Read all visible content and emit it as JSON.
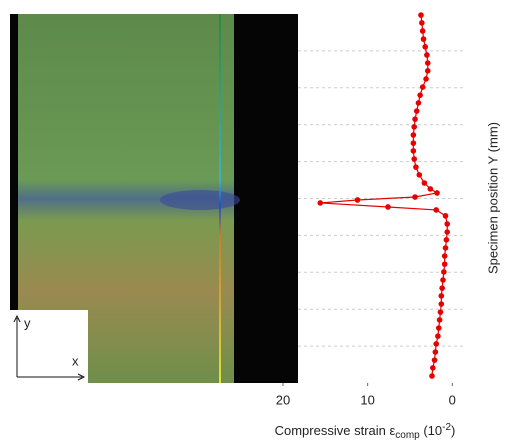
{
  "chart_data": {
    "type": "line",
    "x_label": {
      "main": "Compressive strain ε",
      "sub": "comp",
      "unit_open": " (10",
      "sup": "-2",
      "unit_close": ")"
    },
    "y_label": "Specimen position Y (mm)",
    "inset_axes": {
      "y": "y",
      "x": "x"
    },
    "xlim": [
      20,
      -1.5
    ],
    "xticks": [
      20,
      10,
      0
    ],
    "ylim": [
      0,
      100
    ],
    "grid": true,
    "series": [
      {
        "color": "#e60000",
        "x": [
          3.7,
          3.6,
          3.5,
          3.4,
          3.2,
          3.0,
          2.9,
          2.9,
          3.1,
          3.5,
          3.8,
          4.0,
          4.2,
          4.4,
          4.5,
          4.6,
          4.6,
          4.6,
          4.5,
          4.3,
          3.9,
          3.3,
          2.6,
          1.8,
          4.4,
          11.2,
          15.6,
          7.6,
          1.9,
          0.8,
          0.6,
          0.6,
          0.7,
          0.8,
          0.9,
          0.9,
          1.0,
          1.1,
          1.2,
          1.3,
          1.3,
          1.4,
          1.5,
          1.6,
          1.7,
          1.9,
          2.0,
          2.1,
          2.3,
          2.4
        ],
        "values": [
          99.7,
          97.6,
          95.4,
          93.2,
          91.1,
          88.9,
          86.7,
          84.6,
          82.4,
          80.2,
          78.0,
          75.9,
          73.7,
          71.5,
          69.4,
          67.2,
          65.0,
          62.9,
          60.7,
          58.5,
          56.4,
          54.2,
          52.6,
          51.5,
          50.4,
          49.6,
          48.8,
          47.7,
          46.9,
          45.3,
          43.1,
          40.9,
          38.8,
          36.6,
          34.4,
          32.2,
          30.1,
          27.9,
          25.7,
          23.6,
          21.4,
          19.2,
          17.1,
          14.9,
          12.7,
          10.6,
          8.4,
          6.2,
          4.1,
          1.9
        ]
      }
    ]
  }
}
